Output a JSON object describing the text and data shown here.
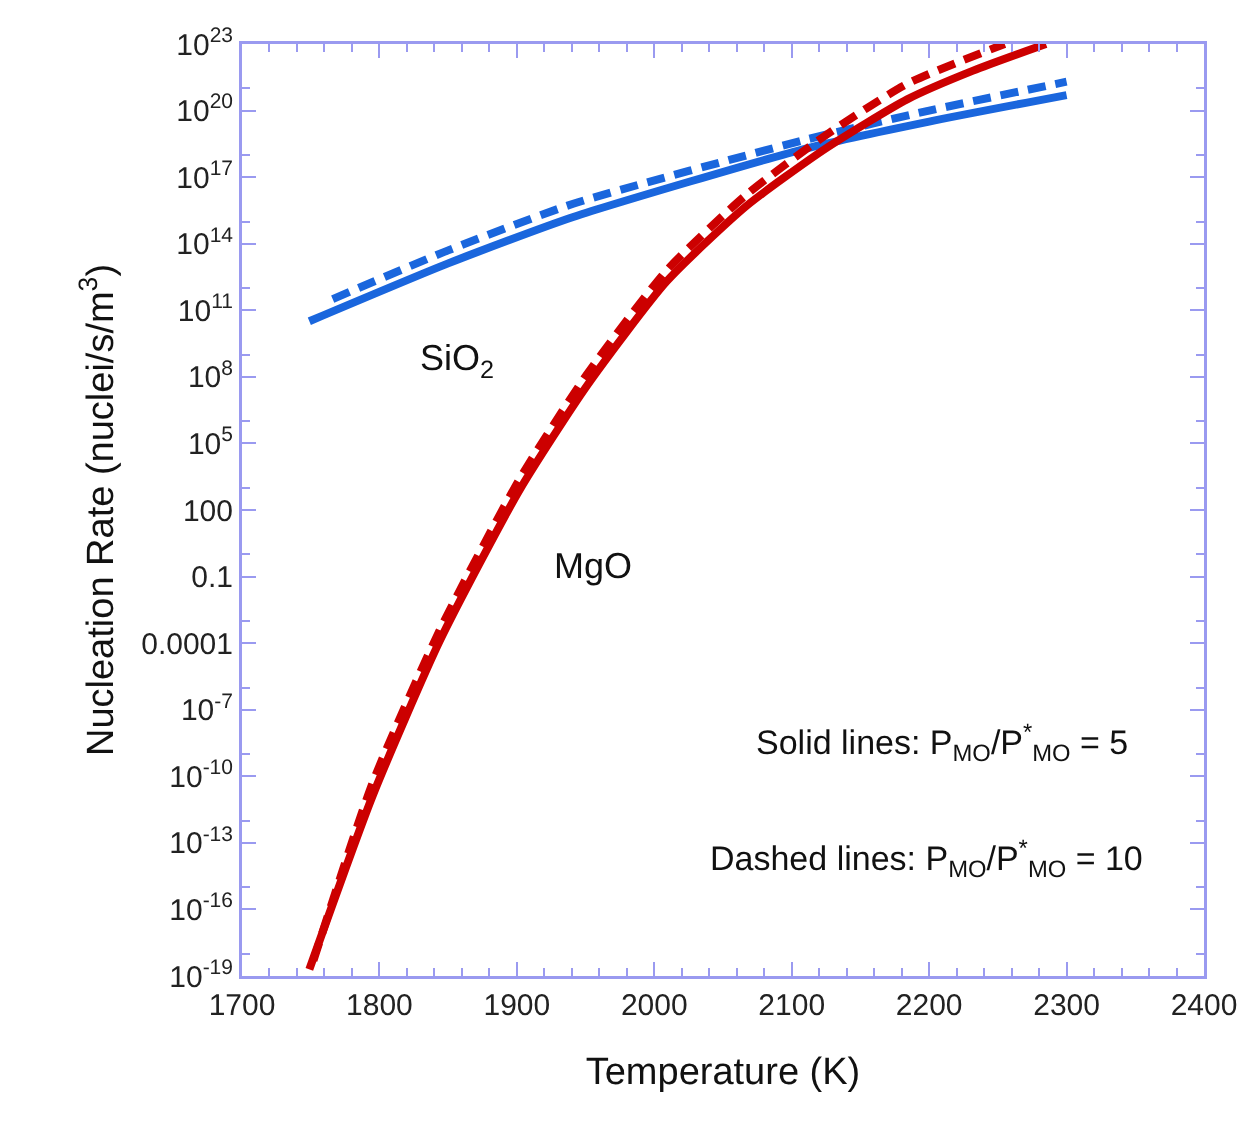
{
  "chart_data": {
    "type": "line",
    "xlabel": "Temperature (K)",
    "ylabel": "Nucleation Rate (nuclei/s/m$^{3}$)",
    "log": "y",
    "grid": false,
    "marker": "none",
    "xlim": [
      1700,
      2400
    ],
    "xticks": [
      1700,
      1800,
      1900,
      2000,
      2100,
      2200,
      2300,
      2400
    ],
    "ylim": [
      1e-19,
      1e+23
    ],
    "yticks": [
      {
        "value": 1e-19,
        "label": "10$^{-19}$"
      },
      {
        "value": 1e-16,
        "label": "10$^{-16}$"
      },
      {
        "value": 1e-13,
        "label": "10$^{-13}$"
      },
      {
        "value": 1e-10,
        "label": "10$^{-10}$"
      },
      {
        "value": 1e-07,
        "label": "10$^{-7}$"
      },
      0.0001,
      0.1,
      100,
      {
        "value": 100000.0,
        "label": "10$^{5}$"
      },
      {
        "value": 100000000.0,
        "label": "10$^{8}$"
      },
      {
        "value": 100000000000.0,
        "label": "10$^{11}$"
      },
      {
        "value": 100000000000000.0,
        "label": "10$^{14}$"
      },
      {
        "value": 1e+17,
        "label": "10$^{17}$"
      },
      {
        "value": 1e+20,
        "label": "10$^{20}$"
      },
      {
        "value": 1e+23,
        "label": "10$^{23}$"
      }
    ],
    "series": [
      {
        "color": "#1a66dd",
        "line_style": "solid",
        "x": [
          1749,
          1850,
          1941,
          2111,
          2200,
          2300
        ],
        "values": [
          32000000000.0,
          13000000000000.0,
          1600000000000000.0,
          2e+18,
          3.2e+19,
          5e+20
        ]
      },
      {
        "color": "#1a66dd",
        "line_style": "dashed",
        "x": [
          1766,
          1850,
          1941,
          2111,
          2200,
          2300
        ],
        "values": [
          320000000000.0,
          50000000000000.0,
          6300000000000000.0,
          5e+18,
          1e+20,
          2e+21
        ]
      },
      {
        "color": "#cc0000",
        "line_style": "solid",
        "x": [
          1749,
          1795,
          1844,
          1902,
          1951,
          2009,
          2067,
          2125,
          2184,
          2232,
          2285
        ],
        "values": [
          2e-19,
          1.3e-11,
          0.00013,
          800,
          40000000.0,
          2000000000000.0,
          5000000000000000.0,
          2e+18,
          3.2e+20,
          6.3e+21,
          1e+23
        ]
      },
      {
        "color": "#cc0000",
        "line_style": "dashed",
        "x": [
          1752,
          1795,
          1844,
          1902,
          1951,
          2009,
          2067,
          2125,
          2184,
          2255
        ],
        "values": [
          5e-19,
          5e-11,
          0.0004,
          2500,
          130000000.0,
          6300000000000.0,
          1.6e+16,
          8e+18,
          1.6e+21,
          1e+23
        ]
      }
    ],
    "annotations": [
      "SiO$_{2}$",
      "MgO",
      "Solid lines: P$_{MO}$/P$^{*}$$_{MO}$ = 5",
      "Dashed lines: P$_{MO}$/P$^{*}$$_{MO}$ = 10"
    ]
  }
}
